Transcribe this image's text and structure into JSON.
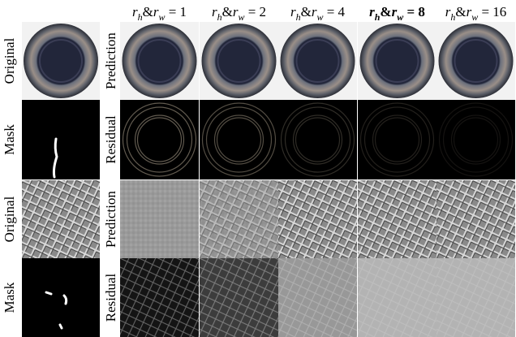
{
  "column_headers": [
    {
      "r1": "r",
      "s1": "h",
      "amp": "&",
      "r2": "r",
      "s2": "w",
      "rest": " = 1",
      "bold": false
    },
    {
      "r1": "r",
      "s1": "h",
      "amp": "&",
      "r2": "r",
      "s2": "w",
      "rest": " = 2",
      "bold": false
    },
    {
      "r1": "r",
      "s1": "h",
      "amp": "&",
      "r2": "r",
      "s2": "w",
      "rest": " = 4",
      "bold": false
    },
    {
      "r1": "r",
      "s1": "h",
      "amp": "&",
      "r2": "r",
      "s2": "w",
      "rest": " = 8",
      "bold": true
    },
    {
      "r1": "r",
      "s1": "h",
      "amp": "&",
      "r2": "r",
      "s2": "w",
      "rest": " = 16",
      "bold": false
    }
  ],
  "left_labels": [
    "Original",
    "Mask",
    "Original",
    "Mask"
  ],
  "mid_labels": [
    "Prediction",
    "Residual",
    "Prediction",
    "Residual"
  ]
}
